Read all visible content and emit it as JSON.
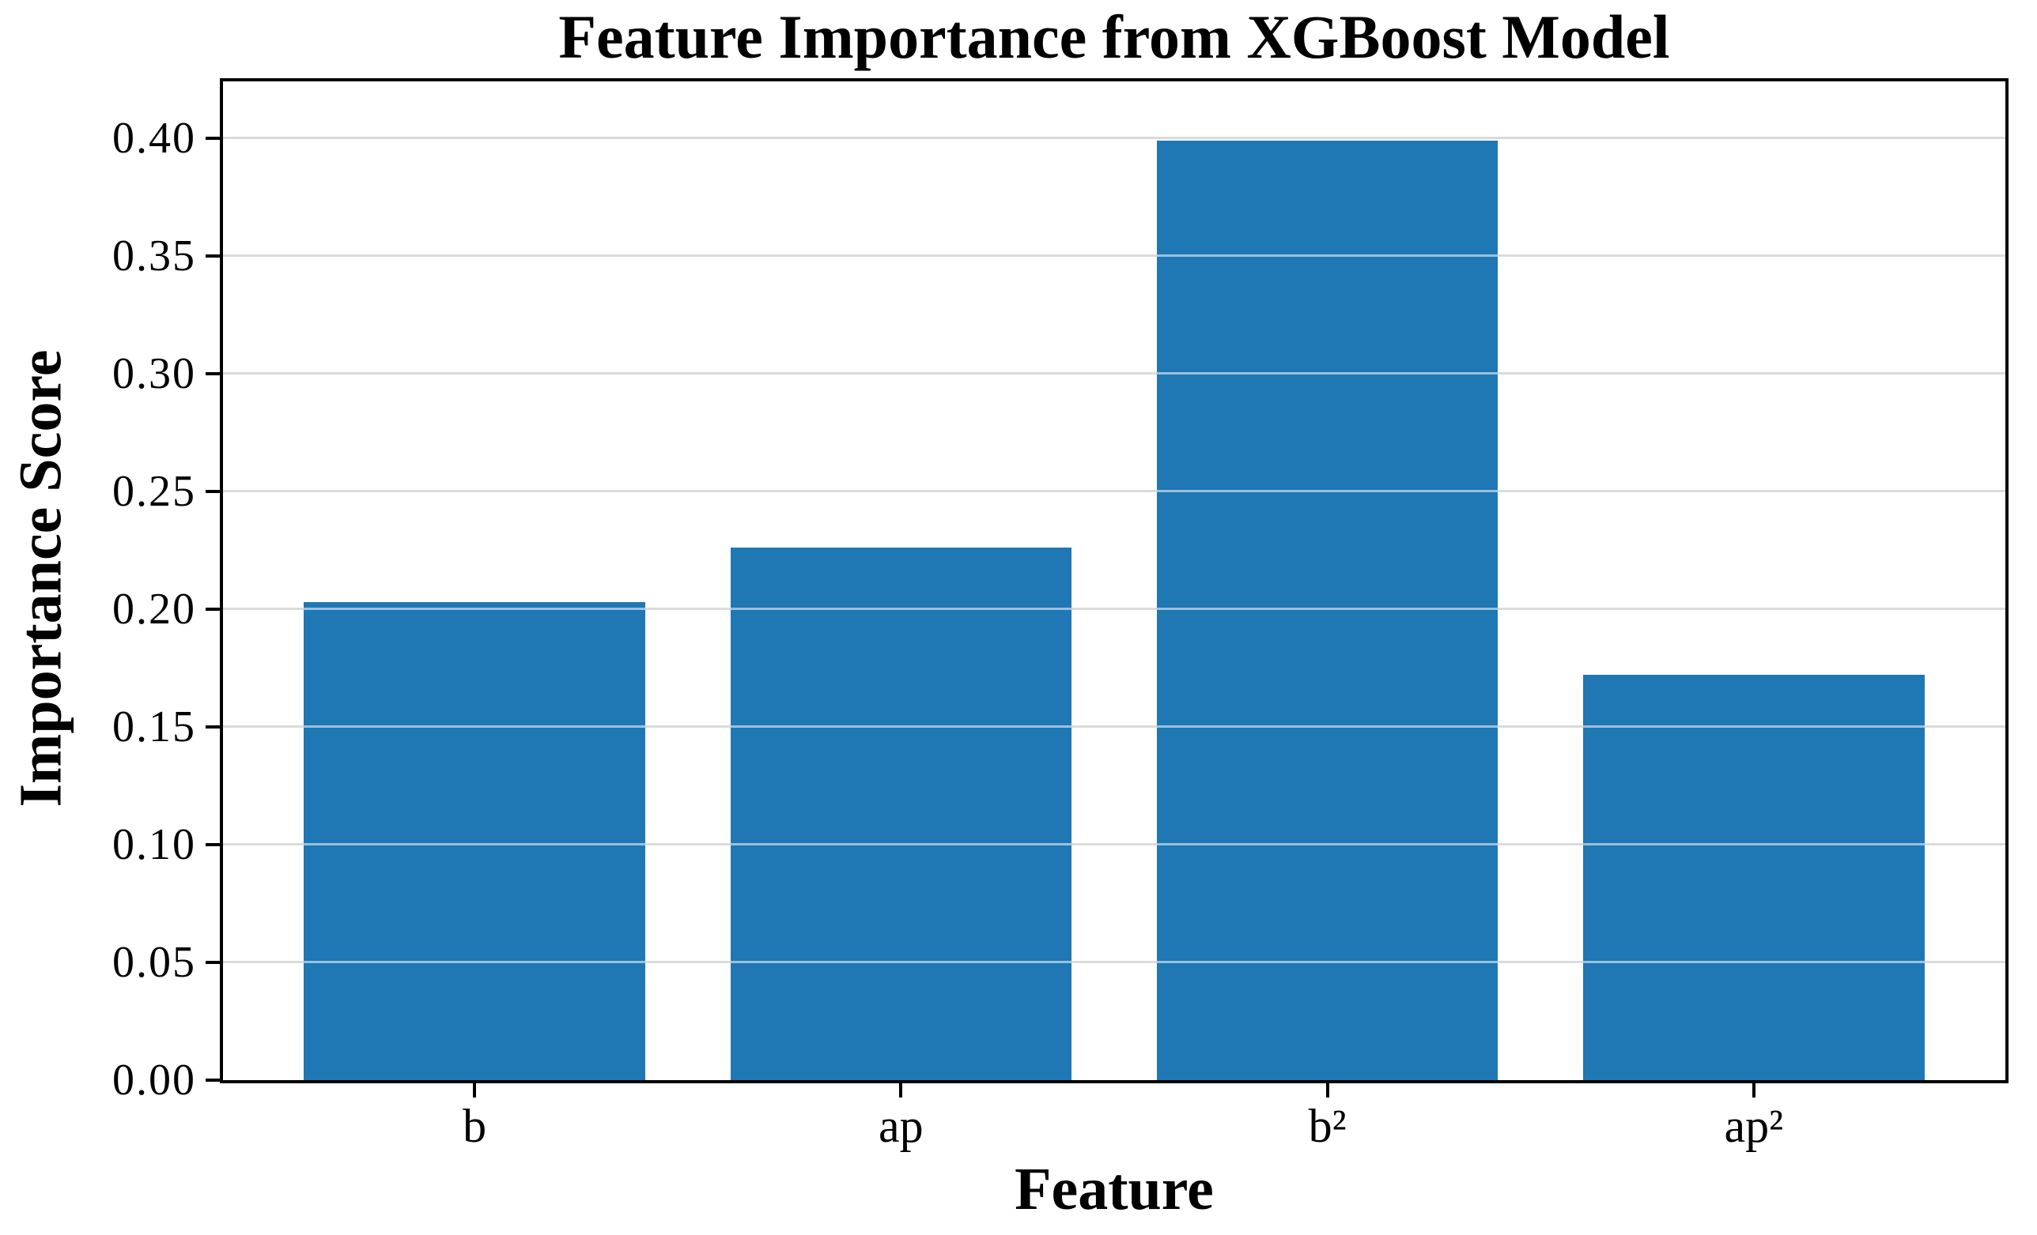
{
  "chart_data": {
    "type": "bar",
    "title": "Feature Importance from XGBoost Model",
    "xlabel": "Feature",
    "ylabel": "Importance Score",
    "categories": [
      "b",
      "ap",
      "b²",
      "ap²"
    ],
    "values": [
      0.203,
      0.226,
      0.399,
      0.172
    ],
    "ytick_labels": [
      "0.00",
      "0.05",
      "0.10",
      "0.15",
      "0.20",
      "0.25",
      "0.30",
      "0.35",
      "0.40"
    ],
    "ytick_values": [
      0.0,
      0.05,
      0.1,
      0.15,
      0.2,
      0.25,
      0.3,
      0.35,
      0.4
    ],
    "ylim": [
      0,
      0.424
    ],
    "xlim": [
      -0.59,
      3.59
    ],
    "bar_width": 0.8,
    "grid": true,
    "legend": false,
    "colors": {
      "bar": "#1f77b4",
      "gridline": "#b0b0b0",
      "gridline_over_bar": "rgba(255,255,255,0.55)",
      "axis": "#000000",
      "background": "#ffffff",
      "text": "#000000"
    }
  }
}
